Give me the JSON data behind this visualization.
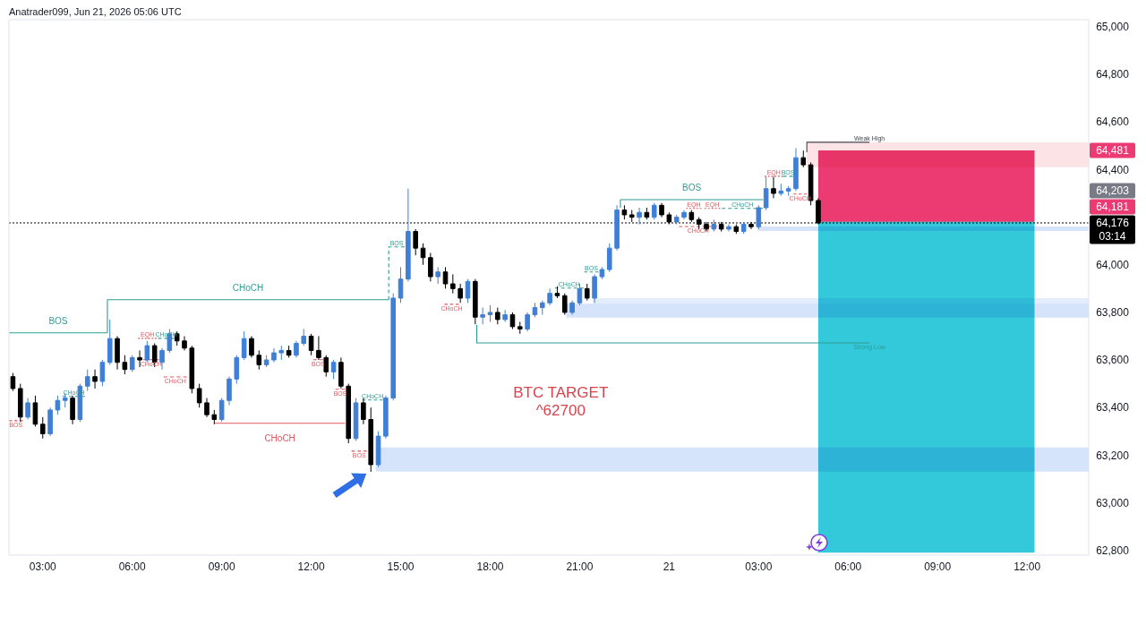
{
  "chart_data": {
    "type": "candlestick",
    "title": "Anatrader099, Jun 21, 2026 05:06 UTC",
    "annotations": [
      "BTC TARGET\n^62700",
      "64,203",
      {
        "text": "64,481",
        "x": "2026-06-21T14:04",
        "y": 64481
      },
      {
        "text": "64,181",
        "x": "2026-06-21T14:04",
        "y": 64181
      }
    ],
    "xlim": [
      "2026-06-20T01:52",
      "2026-06-21T14:04"
    ],
    "xticks": [
      {
        "value": "2026-06-20T03:00",
        "label": "03:00"
      },
      {
        "value": "2026-06-20T06:00",
        "label": "06:00"
      },
      {
        "value": "2026-06-20T09:00",
        "label": "09:00"
      },
      {
        "value": "2026-06-20T12:00",
        "label": "12:00"
      },
      {
        "value": "2026-06-20T15:00",
        "label": "15:00"
      },
      {
        "value": "2026-06-20T18:00",
        "label": "18:00"
      },
      {
        "value": "2026-06-20T21:00",
        "label": "21:00"
      },
      {
        "value": "2026-06-21T00:00",
        "label": "21"
      },
      {
        "value": "2026-06-21T03:00",
        "label": "03:00"
      },
      {
        "value": "2026-06-21T06:00",
        "label": "06:00"
      },
      {
        "value": "2026-06-21T09:00",
        "label": "09:00"
      },
      {
        "value": "2026-06-21T12:00",
        "label": "12:00"
      }
    ],
    "ylim": [
      62780,
      65030
    ],
    "yticks": [
      {
        "value": 62800,
        "label": "62,800"
      },
      {
        "value": 63000,
        "label": "63,000"
      },
      {
        "value": 63200,
        "label": "63,200"
      },
      {
        "value": 63400,
        "label": "63,400"
      },
      {
        "value": 63600,
        "label": "63,600"
      },
      {
        "value": 63800,
        "label": "63,800"
      },
      {
        "value": 64000,
        "label": "64,000"
      },
      {
        "value": 64400,
        "label": "64,400"
      },
      {
        "value": 64600,
        "label": "64,600"
      },
      {
        "value": 64800,
        "label": "64,800"
      },
      {
        "value": 65000,
        "label": "65,000"
      }
    ],
    "x": [
      "2026-06-20T02:00",
      "2026-06-20T02:15",
      "2026-06-20T02:30",
      "2026-06-20T02:45",
      "2026-06-20T03:00",
      "2026-06-20T03:15",
      "2026-06-20T03:30",
      "2026-06-20T03:45",
      "2026-06-20T04:00",
      "2026-06-20T04:15",
      "2026-06-20T04:30",
      "2026-06-20T04:45",
      "2026-06-20T05:00",
      "2026-06-20T05:15",
      "2026-06-20T05:30",
      "2026-06-20T05:45",
      "2026-06-20T06:00",
      "2026-06-20T06:15",
      "2026-06-20T06:30",
      "2026-06-20T06:45",
      "2026-06-20T07:00",
      "2026-06-20T07:15",
      "2026-06-20T07:30",
      "2026-06-20T07:45",
      "2026-06-20T08:00",
      "2026-06-20T08:15",
      "2026-06-20T08:30",
      "2026-06-20T08:45",
      "2026-06-20T09:00",
      "2026-06-20T09:15",
      "2026-06-20T09:30",
      "2026-06-20T09:45",
      "2026-06-20T10:00",
      "2026-06-20T10:15",
      "2026-06-20T10:30",
      "2026-06-20T10:45",
      "2026-06-20T11:00",
      "2026-06-20T11:15",
      "2026-06-20T11:30",
      "2026-06-20T11:45",
      "2026-06-20T12:00",
      "2026-06-20T12:15",
      "2026-06-20T12:30",
      "2026-06-20T12:45",
      "2026-06-20T13:00",
      "2026-06-20T13:15",
      "2026-06-20T13:30",
      "2026-06-20T13:45",
      "2026-06-20T14:00",
      "2026-06-20T14:15",
      "2026-06-20T14:30",
      "2026-06-20T14:45",
      "2026-06-20T15:00",
      "2026-06-20T15:15",
      "2026-06-20T15:30",
      "2026-06-20T15:45",
      "2026-06-20T16:00",
      "2026-06-20T16:15",
      "2026-06-20T16:30",
      "2026-06-20T16:45",
      "2026-06-20T17:00",
      "2026-06-20T17:15",
      "2026-06-20T17:30",
      "2026-06-20T17:45",
      "2026-06-20T18:00",
      "2026-06-20T18:15",
      "2026-06-20T18:30",
      "2026-06-20T18:45",
      "2026-06-20T19:00",
      "2026-06-20T19:15",
      "2026-06-20T19:30",
      "2026-06-20T19:45",
      "2026-06-20T20:00",
      "2026-06-20T20:15",
      "2026-06-20T20:30",
      "2026-06-20T20:45",
      "2026-06-20T21:00",
      "2026-06-20T21:15",
      "2026-06-20T21:30",
      "2026-06-20T21:45",
      "2026-06-20T22:00",
      "2026-06-20T22:15",
      "2026-06-20T22:30",
      "2026-06-20T22:45",
      "2026-06-20T23:00",
      "2026-06-20T23:15",
      "2026-06-20T23:30",
      "2026-06-20T23:45",
      "2026-06-21T00:00",
      "2026-06-21T00:15",
      "2026-06-21T00:30",
      "2026-06-21T00:45",
      "2026-06-21T01:00",
      "2026-06-21T01:15",
      "2026-06-21T01:30",
      "2026-06-21T01:45",
      "2026-06-21T02:00",
      "2026-06-21T02:15",
      "2026-06-21T02:30",
      "2026-06-21T02:45",
      "2026-06-21T03:00",
      "2026-06-21T03:15",
      "2026-06-21T03:30",
      "2026-06-21T03:45",
      "2026-06-21T04:00",
      "2026-06-21T04:15",
      "2026-06-21T04:30",
      "2026-06-21T04:45",
      "2026-06-21T05:00"
    ],
    "ohlc": [
      [
        63530,
        63545,
        63470,
        63480
      ],
      [
        63480,
        63500,
        63340,
        63360
      ],
      [
        63360,
        63440,
        63350,
        63420
      ],
      [
        63420,
        63450,
        63320,
        63330
      ],
      [
        63330,
        63360,
        63270,
        63290
      ],
      [
        63290,
        63400,
        63280,
        63390
      ],
      [
        63390,
        63450,
        63370,
        63430
      ],
      [
        63430,
        63460,
        63400,
        63440
      ],
      [
        63440,
        63450,
        63330,
        63350
      ],
      [
        63350,
        63500,
        63340,
        63490
      ],
      [
        63490,
        63560,
        63470,
        63530
      ],
      [
        63530,
        63560,
        63480,
        63510
      ],
      [
        63510,
        63600,
        63490,
        63590
      ],
      [
        63590,
        63770,
        63580,
        63690
      ],
      [
        63690,
        63700,
        63560,
        63590
      ],
      [
        63590,
        63620,
        63540,
        63560
      ],
      [
        63560,
        63620,
        63550,
        63610
      ],
      [
        63610,
        63640,
        63570,
        63600
      ],
      [
        63600,
        63680,
        63590,
        63660
      ],
      [
        63660,
        63670,
        63570,
        63590
      ],
      [
        63590,
        63650,
        63560,
        63640
      ],
      [
        63640,
        63730,
        63630,
        63710
      ],
      [
        63710,
        63720,
        63660,
        63680
      ],
      [
        63680,
        63700,
        63640,
        63650
      ],
      [
        63650,
        63660,
        63460,
        63480
      ],
      [
        63480,
        63500,
        63400,
        63420
      ],
      [
        63420,
        63440,
        63360,
        63370
      ],
      [
        63370,
        63390,
        63330,
        63350
      ],
      [
        63350,
        63440,
        63340,
        63430
      ],
      [
        63430,
        63530,
        63410,
        63520
      ],
      [
        63520,
        63620,
        63500,
        63610
      ],
      [
        63610,
        63720,
        63600,
        63690
      ],
      [
        63690,
        63700,
        63610,
        63620
      ],
      [
        63620,
        63640,
        63560,
        63580
      ],
      [
        63580,
        63620,
        63570,
        63600
      ],
      [
        63600,
        63650,
        63590,
        63630
      ],
      [
        63630,
        63660,
        63600,
        63640
      ],
      [
        63640,
        63660,
        63610,
        63620
      ],
      [
        63620,
        63680,
        63610,
        63670
      ],
      [
        63670,
        63730,
        63660,
        63700
      ],
      [
        63700,
        63710,
        63620,
        63640
      ],
      [
        63640,
        63700,
        63600,
        63610
      ],
      [
        63610,
        63620,
        63530,
        63550
      ],
      [
        63550,
        63600,
        63520,
        63590
      ],
      [
        63590,
        63610,
        63480,
        63490
      ],
      [
        63490,
        63500,
        63250,
        63270
      ],
      [
        63270,
        63440,
        63260,
        63420
      ],
      [
        63420,
        63440,
        63330,
        63350
      ],
      [
        63350,
        63400,
        63130,
        63160
      ],
      [
        63160,
        63300,
        63150,
        63280
      ],
      [
        63280,
        63450,
        63270,
        63440
      ],
      [
        63440,
        63880,
        63430,
        63860
      ],
      [
        63860,
        63990,
        63840,
        63940
      ],
      [
        63940,
        64320,
        63930,
        64140
      ],
      [
        64140,
        64150,
        64040,
        64070
      ],
      [
        64070,
        64090,
        64000,
        64030
      ],
      [
        64030,
        64050,
        63930,
        63950
      ],
      [
        63950,
        63990,
        63920,
        63970
      ],
      [
        63970,
        63990,
        63900,
        63920
      ],
      [
        63920,
        63960,
        63880,
        63900
      ],
      [
        63900,
        63920,
        63840,
        63860
      ],
      [
        63860,
        63940,
        63840,
        63930
      ],
      [
        63930,
        63940,
        63750,
        63780
      ],
      [
        63780,
        63820,
        63750,
        63790
      ],
      [
        63790,
        63830,
        63760,
        63800
      ],
      [
        63800,
        63820,
        63750,
        63770
      ],
      [
        63770,
        63810,
        63760,
        63790
      ],
      [
        63790,
        63800,
        63730,
        63740
      ],
      [
        63740,
        63760,
        63710,
        63730
      ],
      [
        63730,
        63800,
        63720,
        63790
      ],
      [
        63790,
        63840,
        63780,
        63820
      ],
      [
        63820,
        63850,
        63790,
        63840
      ],
      [
        63840,
        63900,
        63830,
        63880
      ],
      [
        63880,
        63910,
        63860,
        63870
      ],
      [
        63870,
        63880,
        63790,
        63800
      ],
      [
        63800,
        63850,
        63790,
        63840
      ],
      [
        63840,
        63920,
        63830,
        63900
      ],
      [
        63900,
        63920,
        63850,
        63860
      ],
      [
        63860,
        63960,
        63840,
        63950
      ],
      [
        63950,
        63990,
        63940,
        63980
      ],
      [
        63980,
        64090,
        63970,
        64070
      ],
      [
        64070,
        64250,
        64060,
        64230
      ],
      [
        64230,
        64250,
        64190,
        64210
      ],
      [
        64210,
        64230,
        64180,
        64200
      ],
      [
        64200,
        64240,
        64170,
        64220
      ],
      [
        64220,
        64240,
        64190,
        64200
      ],
      [
        64200,
        64260,
        64190,
        64250
      ],
      [
        64250,
        64260,
        64200,
        64210
      ],
      [
        64210,
        64220,
        64170,
        64180
      ],
      [
        64180,
        64210,
        64170,
        64200
      ],
      [
        64200,
        64230,
        64190,
        64220
      ],
      [
        64220,
        64230,
        64180,
        64190
      ],
      [
        64190,
        64200,
        64150,
        64170
      ],
      [
        64170,
        64180,
        64140,
        64150
      ],
      [
        64150,
        64190,
        64140,
        64170
      ],
      [
        64170,
        64180,
        64140,
        64150
      ],
      [
        64150,
        64170,
        64140,
        64160
      ],
      [
        64160,
        64170,
        64130,
        64140
      ],
      [
        64140,
        64180,
        64130,
        64170
      ],
      [
        64170,
        64180,
        64150,
        64160
      ],
      [
        64160,
        64250,
        64150,
        64240
      ],
      [
        64240,
        64370,
        64230,
        64320
      ],
      [
        64320,
        64370,
        64280,
        64300
      ],
      [
        64300,
        64340,
        64290,
        64310
      ],
      [
        64310,
        64330,
        64290,
        64320
      ],
      [
        64320,
        64490,
        64310,
        64450
      ],
      [
        64450,
        64480,
        64410,
        64420
      ],
      [
        64420,
        64430,
        64250,
        64270
      ],
      [
        64270,
        64280,
        64170,
        64176
      ]
    ],
    "colors": [
      "#000000",
      "#000000",
      "#3f7fd6",
      "#000000",
      "#000000",
      "#3f7fd6",
      "#3f7fd6",
      "#3f7fd6",
      "#000000",
      "#3f7fd6",
      "#3f7fd6",
      "#000000",
      "#3f7fd6",
      "#3f7fd6",
      "#000000",
      "#000000",
      "#3f7fd6",
      "#000000",
      "#3f7fd6",
      "#000000",
      "#3f7fd6",
      "#3f7fd6",
      "#000000",
      "#000000",
      "#000000",
      "#000000",
      "#000000",
      "#000000",
      "#3f7fd6",
      "#3f7fd6",
      "#3f7fd6",
      "#3f7fd6",
      "#000000",
      "#000000",
      "#3f7fd6",
      "#3f7fd6",
      "#3f7fd6",
      "#000000",
      "#3f7fd6",
      "#3f7fd6",
      "#000000",
      "#000000",
      "#000000",
      "#3f7fd6",
      "#000000",
      "#000000",
      "#3f7fd6",
      "#000000",
      "#000000",
      "#3f7fd6",
      "#3f7fd6",
      "#3f7fd6",
      "#3f7fd6",
      "#3f7fd6",
      "#000000",
      "#000000",
      "#000000",
      "#3f7fd6",
      "#000000",
      "#000000",
      "#000000",
      "#3f7fd6",
      "#000000",
      "#3f7fd6",
      "#3f7fd6",
      "#000000",
      "#3f7fd6",
      "#000000",
      "#000000",
      "#3f7fd6",
      "#3f7fd6",
      "#3f7fd6",
      "#3f7fd6",
      "#000000",
      "#000000",
      "#3f7fd6",
      "#3f7fd6",
      "#000000",
      "#3f7fd6",
      "#3f7fd6",
      "#3f7fd6",
      "#3f7fd6",
      "#000000",
      "#000000",
      "#3f7fd6",
      "#000000",
      "#3f7fd6",
      "#000000",
      "#000000",
      "#3f7fd6",
      "#3f7fd6",
      "#000000",
      "#000000",
      "#000000",
      "#3f7fd6",
      "#000000",
      "#3f7fd6",
      "#000000",
      "#3f7fd6",
      "#000000",
      "#3f7fd6",
      "#3f7fd6",
      "#000000",
      "#3f7fd6",
      "#3f7fd6",
      "#3f7fd6",
      "#000000",
      "#000000",
      "#000000"
    ],
    "series": [
      {
        "type": "line",
        "x": [
          "2026-06-21T04:37",
          "2026-06-21T14:04"
        ],
        "values": [
          null,
          null
        ],
        "lower": [
          64410,
          64410
        ],
        "upper": [
          64515,
          64515
        ],
        "color": "#fce3e6"
      },
      {
        "type": "line",
        "x": [
          "2026-06-21T05:00",
          "2026-06-21T12:15"
        ],
        "values": [
          null,
          null
        ],
        "lower": [
          64181,
          64181
        ],
        "upper": [
          64481,
          64481
        ],
        "color": "#eb3b72"
      },
      {
        "type": "line",
        "x": [
          "2026-06-21T05:00",
          "2026-06-21T12:15"
        ],
        "values": [
          null,
          null
        ],
        "lower": [
          62790,
          62790
        ],
        "upper": [
          64181,
          64181
        ],
        "color": "#34c9da"
      },
      {
        "type": "line",
        "x": [
          "2026-06-20T14:10",
          "2026-06-21T14:04"
        ],
        "values": [
          null,
          null
        ],
        "lower": [
          63131,
          63131
        ],
        "upper": [
          63232,
          63232
        ],
        "color": "#d5e3fb"
      },
      {
        "type": "line",
        "x": [
          "2026-06-20T20:33",
          "2026-06-21T14:04"
        ],
        "values": [
          null,
          null
        ],
        "lower": [
          63778,
          63778
        ],
        "upper": [
          63836,
          63836
        ],
        "color": "#d5e3fb"
      },
      {
        "type": "line",
        "x": [
          "2026-06-20T21:27",
          "2026-06-21T14:04"
        ],
        "values": [
          null,
          null
        ],
        "lower": [
          63836,
          63836
        ],
        "upper": [
          63860,
          63860
        ],
        "color": "#e4edfc"
      },
      {
        "type": "line",
        "x": [
          "2026-06-21T02:58",
          "2026-06-21T14:04"
        ],
        "values": [
          null,
          null
        ],
        "lower": [
          64142,
          64142
        ],
        "upper": [
          64161,
          64161
        ],
        "color": "#d5e3fb"
      },
      {
        "type": "line",
        "name": "BOS",
        "color": "#2e9c96",
        "line_style": "solid",
        "x": [
          "2026-06-20T01:52",
          "2026-06-20T05:10"
        ],
        "values": [
          63714,
          63714
        ]
      },
      {
        "type": "line",
        "name": "CHoCH",
        "color": "#2e9c96",
        "line_style": "solid",
        "x": [
          "2026-06-20T05:10",
          "2026-06-20T05:10",
          "2026-06-20T14:36"
        ],
        "values": [
          63714,
          63853,
          63853
        ]
      },
      {
        "type": "line",
        "name": "CHoCH",
        "color": "#e0565f",
        "line_style": "solid",
        "x": [
          "2026-06-20T08:46",
          "2026-06-20T13:08"
        ],
        "values": [
          63334,
          63334
        ]
      },
      {
        "type": "line",
        "name": "BOS",
        "color": "#2e9c96",
        "line_style": "solid",
        "x": [
          "2026-06-20T22:22",
          "2026-06-20T22:22",
          "2026-06-21T03:09"
        ],
        "values": [
          64240,
          64274,
          64274
        ]
      },
      {
        "type": "line",
        "name": "Strong Low",
        "color": "#2e9c96",
        "line_style": "solid",
        "x": [
          "2026-06-20T17:33",
          "2026-06-20T17:33",
          "2026-06-21T06:43"
        ],
        "values": [
          63748,
          63672,
          63672
        ]
      },
      {
        "type": "line",
        "name": "Weak High",
        "color": "#434651",
        "line_style": "solid",
        "x": [
          "2026-06-21T04:37",
          "2026-06-21T04:37",
          "2026-06-21T06:43"
        ],
        "values": [
          64473,
          64515,
          64515
        ]
      },
      {
        "type": "line",
        "name": "BOS",
        "color": "#e0565f",
        "line_style": "dashed",
        "x": [
          "2026-06-20T01:52",
          "2026-06-20T02:20"
        ],
        "values": [
          63345,
          63345
        ]
      },
      {
        "type": "line",
        "name": "CHoCH",
        "color": "#2e9c96",
        "line_style": "dashed",
        "x": [
          "2026-06-20T03:40",
          "2026-06-20T04:25"
        ],
        "values": [
          63447,
          63447
        ]
      },
      {
        "type": "line",
        "name": "EQH",
        "color": "#e0565f",
        "line_style": "dotted",
        "x": [
          "2026-06-20T06:12",
          "2026-06-20T06:49"
        ],
        "values": [
          63691,
          63691
        ]
      },
      {
        "type": "line",
        "name": "CHoCH",
        "color": "#2e9c96",
        "line_style": "dashed",
        "x": [
          "2026-06-20T06:52",
          "2026-06-20T07:24"
        ],
        "values": [
          63691,
          63691
        ]
      },
      {
        "type": "line",
        "name": "CHoCH",
        "color": "#e0565f",
        "line_style": "dashed",
        "x": [
          "2026-06-20T06:22",
          "2026-06-20T06:54"
        ],
        "values": [
          63601,
          63601
        ]
      },
      {
        "type": "line",
        "name": "CHoCH",
        "color": "#e0565f",
        "line_style": "dashed",
        "x": [
          "2026-06-20T07:03",
          "2026-06-20T07:50"
        ],
        "values": [
          63529,
          63529
        ]
      },
      {
        "type": "line",
        "name": "BOS",
        "color": "#e0565f",
        "line_style": "dashed",
        "x": [
          "2026-06-20T12:04",
          "2026-06-20T12:24"
        ],
        "values": [
          63601,
          63601
        ]
      },
      {
        "type": "line",
        "name": "BOS",
        "color": "#e0565f",
        "line_style": "dashed",
        "x": [
          "2026-06-20T12:49",
          "2026-06-20T13:08"
        ],
        "values": [
          63477,
          63477
        ]
      },
      {
        "type": "line",
        "name": "BOS",
        "color": "#e0565f",
        "line_style": "dashed",
        "x": [
          "2026-06-20T13:21",
          "2026-06-20T13:52"
        ],
        "values": [
          63217,
          63217
        ]
      },
      {
        "type": "line",
        "name": "CHoCH",
        "color": "#2e9c96",
        "line_style": "dashed",
        "x": [
          "2026-06-20T13:43",
          "2026-06-20T14:24"
        ],
        "values": [
          63432,
          63432
        ]
      },
      {
        "type": "line",
        "name": "BOS",
        "color": "#2e9c96",
        "line_style": "dashed",
        "x": [
          "2026-06-20T14:36",
          "2026-06-20T14:36",
          "2026-06-20T15:08"
        ],
        "values": [
          63853,
          64075,
          64075
        ]
      },
      {
        "type": "line",
        "name": "CHoCH",
        "color": "#e0565f",
        "line_style": "dashed",
        "x": [
          "2026-06-20T16:28",
          "2026-06-20T16:57"
        ],
        "values": [
          63834,
          63834
        ]
      },
      {
        "type": "line",
        "name": "CHoCH",
        "color": "#2e9c96",
        "line_style": "dashed",
        "x": [
          "2026-06-20T20:10",
          "2026-06-20T21:08"
        ],
        "values": [
          63902,
          63902
        ]
      },
      {
        "type": "line",
        "name": "BOS",
        "color": "#2e9c96",
        "line_style": "dashed",
        "x": [
          "2026-06-20T21:09",
          "2026-06-20T21:38"
        ],
        "values": [
          63970,
          63970
        ]
      },
      {
        "type": "line",
        "name": "EQH",
        "color": "#e0565f",
        "line_style": "dotted",
        "x": [
          "2026-06-21T00:34",
          "2026-06-21T01:05"
        ],
        "values": [
          64237,
          64237
        ]
      },
      {
        "type": "line",
        "name": "EQH",
        "color": "#e0565f",
        "line_style": "dotted",
        "x": [
          "2026-06-21T01:11",
          "2026-06-21T01:43"
        ],
        "values": [
          64237,
          64237
        ]
      },
      {
        "type": "line",
        "name": "CHoCH",
        "color": "#2e9c96",
        "line_style": "dashed",
        "x": [
          "2026-06-21T01:46",
          "2026-06-21T03:09"
        ],
        "values": [
          64237,
          64237
        ]
      },
      {
        "type": "line",
        "name": "CHoCH",
        "color": "#e0565f",
        "line_style": "dashed",
        "x": [
          "2026-06-21T00:20",
          "2026-06-21T01:37"
        ],
        "values": [
          64161,
          64161
        ]
      },
      {
        "type": "line",
        "name": "EQH",
        "color": "#e0565f",
        "line_style": "dotted",
        "x": [
          "2026-06-21T03:12",
          "2026-06-21T03:49"
        ],
        "values": [
          64372,
          64372
        ]
      },
      {
        "type": "line",
        "name": "BOS",
        "color": "#2e9c96",
        "line_style": "dashed",
        "x": [
          "2026-06-21T03:49",
          "2026-06-21T04:09"
        ],
        "values": [
          64372,
          64372
        ]
      },
      {
        "type": "line",
        "name": "CHoCH",
        "color": "#e0565f",
        "line_style": "dashed",
        "x": [
          "2026-06-21T04:10",
          "2026-06-21T04:37"
        ],
        "values": [
          64297,
          64297
        ]
      }
    ],
    "ref_lines": [
      {
        "axis": "y",
        "value": 64176,
        "label": "64,176\n03:14",
        "color": "#000000",
        "line_style": "dotted"
      }
    ]
  }
}
